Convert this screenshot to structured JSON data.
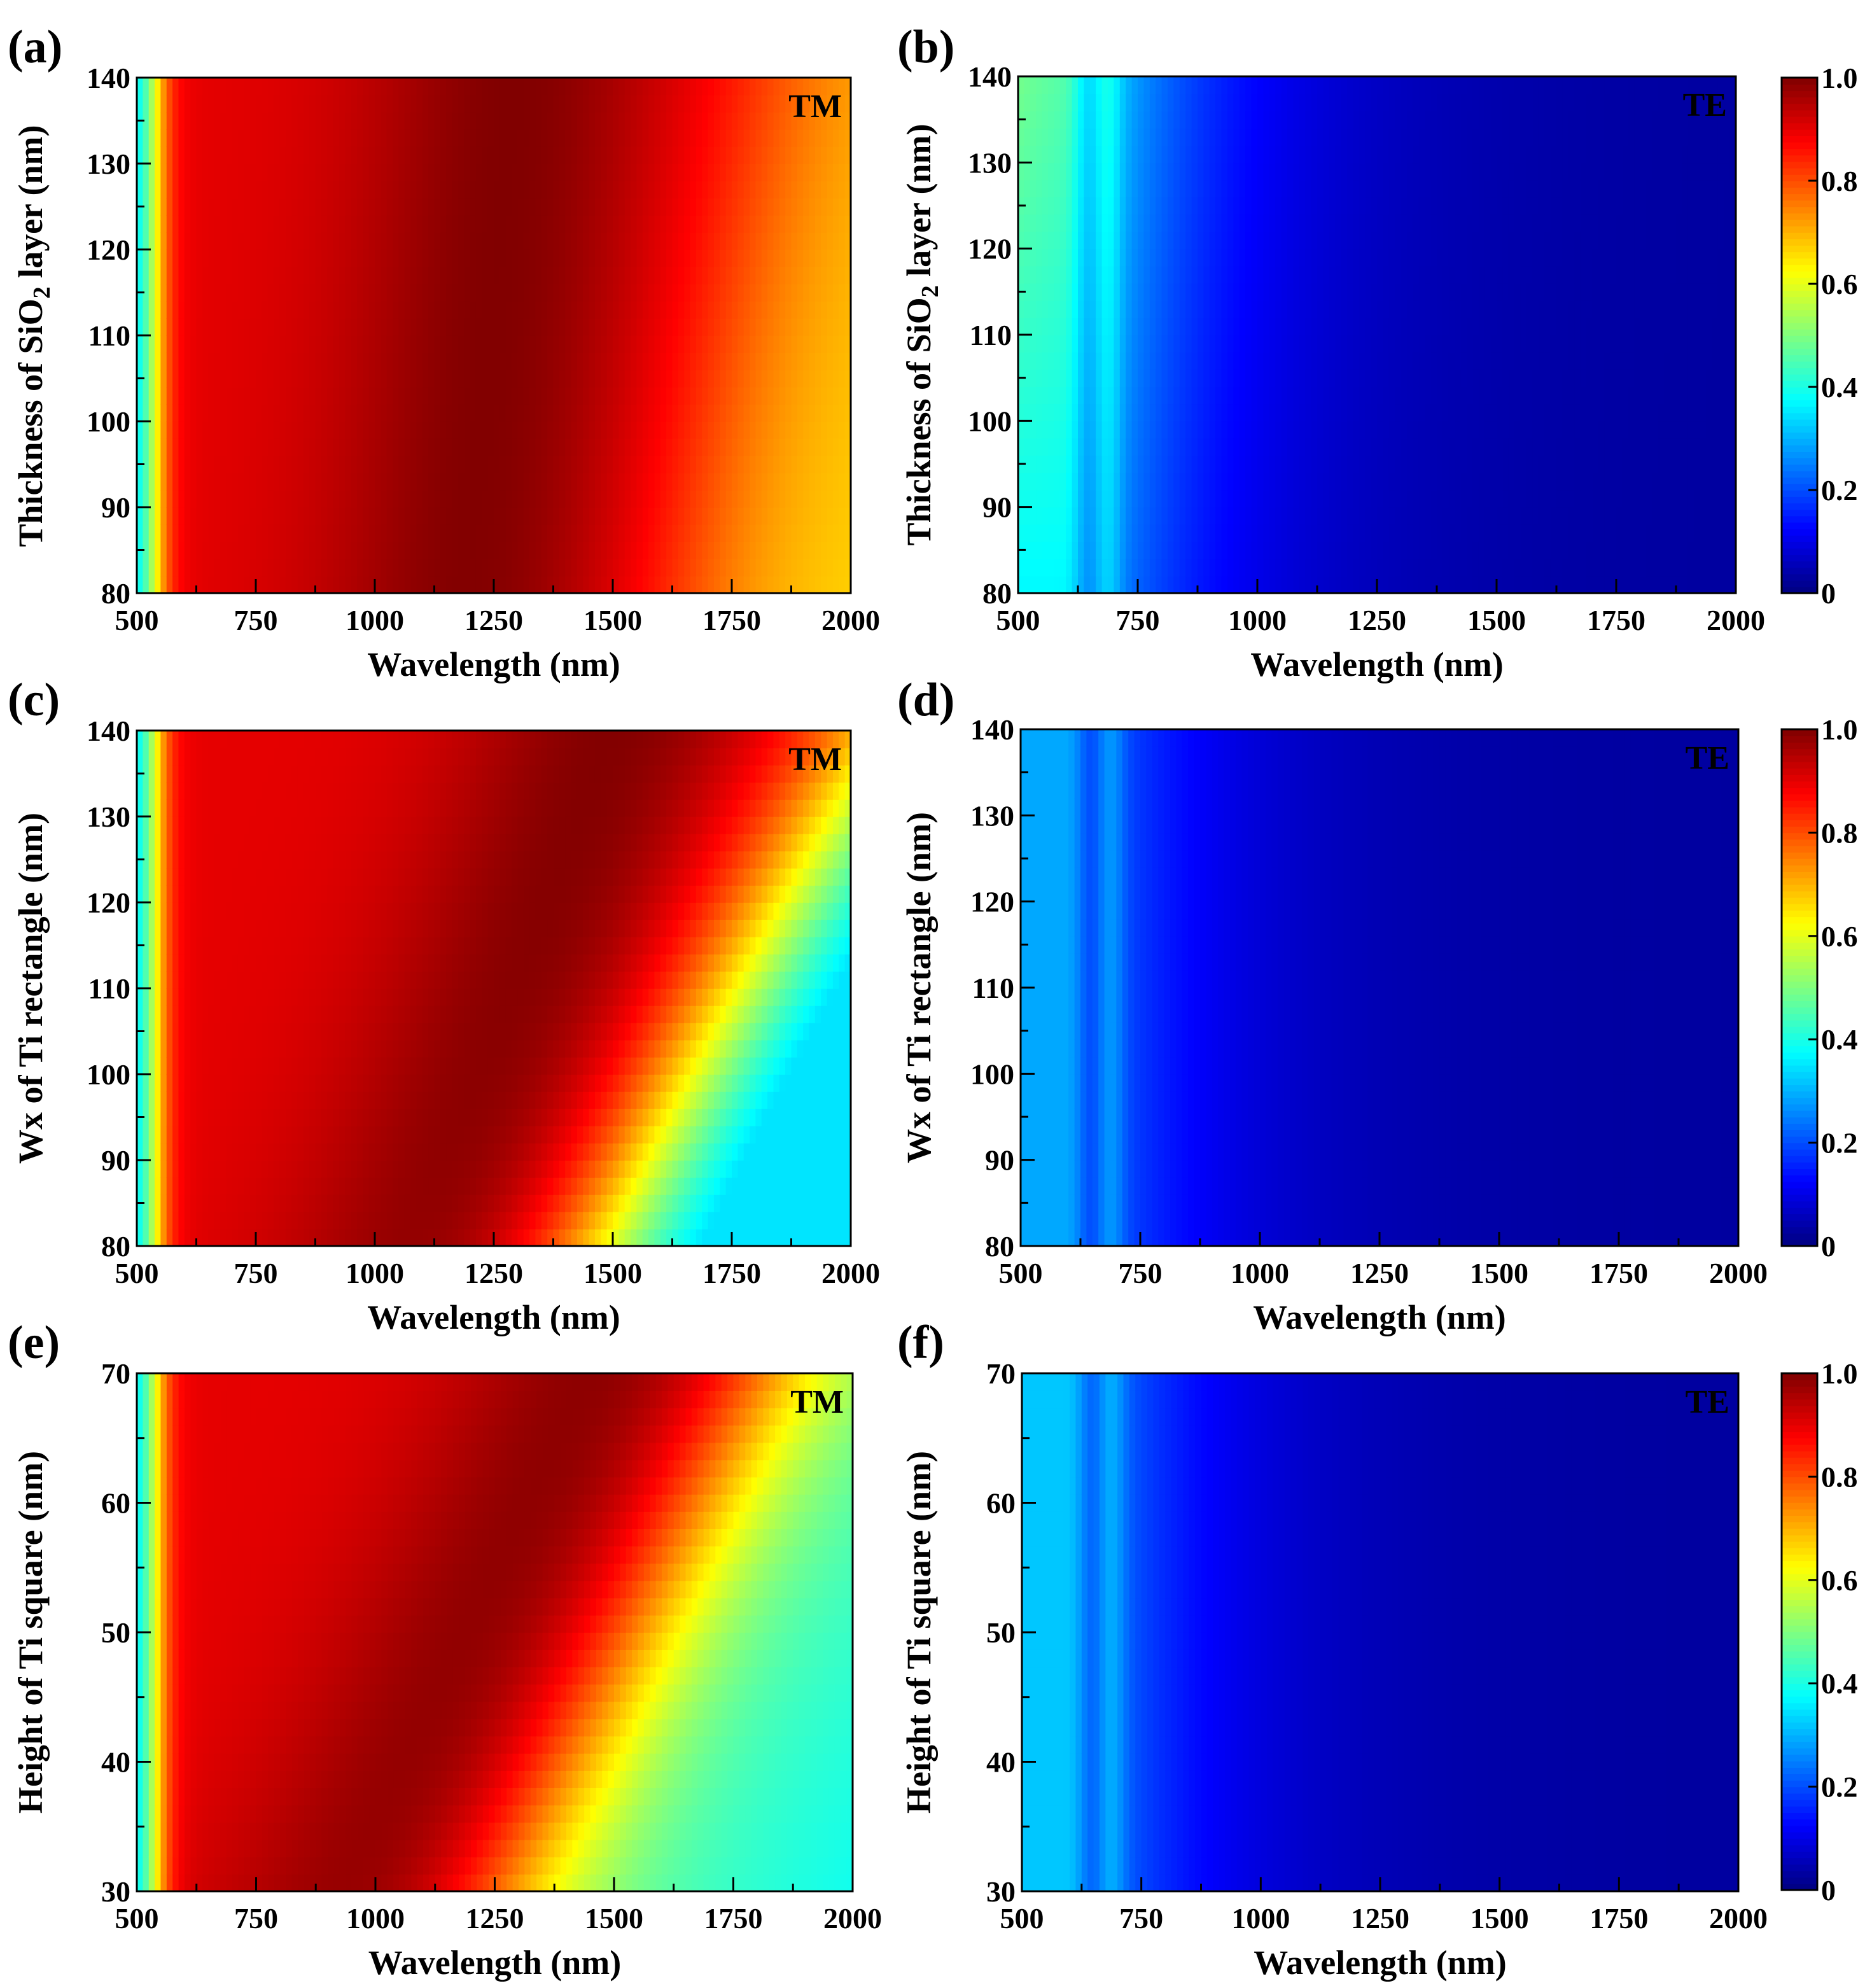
{
  "figure": {
    "description_free": true
  },
  "chart_data": [
    {
      "type": "heatmap",
      "panel": "(a)",
      "mode": "TM",
      "title": "",
      "xlabel": "Wavelength (nm)",
      "ylabel_main": "Thickness of SiO",
      "ylabel_sub": "2",
      "ylabel_tail": " layer (nm)",
      "xlim": [
        500,
        2000
      ],
      "ylim": [
        80,
        140
      ],
      "xticks": [
        500,
        750,
        1000,
        1250,
        1500,
        1750,
        2000
      ],
      "yticks": [
        80,
        90,
        100,
        110,
        120,
        130,
        140
      ],
      "xticklabels": [
        "500",
        "750",
        "1000",
        "1250",
        "1500",
        "1750",
        "2000"
      ],
      "yticklabels": [
        "80",
        "90",
        "100",
        "110",
        "120",
        "130",
        "140"
      ],
      "model": "tm",
      "params": {
        "c0": 1300,
        "cs": 1.5,
        "d0": 1850,
        "ds": 3.0,
        "yref": 140,
        "lowedge": 80,
        "dep": 0.22
      },
      "colorbar": null
    },
    {
      "type": "heatmap",
      "panel": "(b)",
      "mode": "TE",
      "title": "",
      "xlabel": "Wavelength (nm)",
      "ylabel_main": "Thickness of SiO",
      "ylabel_sub": "2",
      "ylabel_tail": " layer (nm)",
      "xlim": [
        500,
        2000
      ],
      "ylim": [
        80,
        140
      ],
      "xticks": [
        500,
        750,
        1000,
        1250,
        1500,
        1750,
        2000
      ],
      "yticks": [
        80,
        90,
        100,
        110,
        120,
        130,
        140
      ],
      "xticklabels": [
        "500",
        "750",
        "1000",
        "1250",
        "1500",
        "1750",
        "2000"
      ],
      "yticklabels": [
        "80",
        "90",
        "100",
        "110",
        "120",
        "130",
        "140"
      ],
      "model": "te",
      "params": {
        "base": 0.34,
        "yvar": 0.12,
        "yref": 140,
        "span": 60
      },
      "colorbar": {
        "min": 0,
        "max": 1.0,
        "ticks": [
          0,
          0.2,
          0.4,
          0.6,
          0.8,
          1.0
        ],
        "ticklabels": [
          "0",
          "0.2",
          "0.4",
          "0.6",
          "0.8",
          "1.0"
        ]
      }
    },
    {
      "type": "heatmap",
      "panel": "(c)",
      "mode": "TM",
      "title": "",
      "xlabel": "Wavelength (nm)",
      "ylabel_main": "Wx of Ti rectangle (nm)",
      "ylabel_sub": "",
      "ylabel_tail": "",
      "xlim": [
        500,
        2000
      ],
      "ylim": [
        80,
        140
      ],
      "xticks": [
        500,
        750,
        1000,
        1250,
        1500,
        1750,
        2000
      ],
      "yticks": [
        80,
        90,
        100,
        110,
        120,
        130,
        140
      ],
      "xticklabels": [
        "500",
        "750",
        "1000",
        "1250",
        "1500",
        "1750",
        "2000"
      ],
      "yticklabels": [
        "80",
        "90",
        "100",
        "110",
        "120",
        "130",
        "140"
      ],
      "model": "tm",
      "params": {
        "c0": 1150,
        "cs": 6.0,
        "d0": 1480,
        "ds": 10.0,
        "yref": 80,
        "lowedge": 80,
        "dep": 0.62
      },
      "colorbar": null
    },
    {
      "type": "heatmap",
      "panel": "(d)",
      "mode": "TE",
      "title": "",
      "xlabel": "Wavelength (nm)",
      "ylabel_main": "Wx of Ti rectangle (nm)",
      "ylabel_sub": "",
      "ylabel_tail": "",
      "xlim": [
        500,
        2000
      ],
      "ylim": [
        80,
        140
      ],
      "xticks": [
        500,
        750,
        1000,
        1250,
        1500,
        1750,
        2000
      ],
      "yticks": [
        80,
        90,
        100,
        110,
        120,
        130,
        140
      ],
      "xticklabels": [
        "500",
        "750",
        "1000",
        "1250",
        "1500",
        "1750",
        "2000"
      ],
      "yticklabels": [
        "80",
        "90",
        "100",
        "110",
        "120",
        "130",
        "140"
      ],
      "model": "te",
      "params": {
        "base": 0.26,
        "yvar": 0.0,
        "yref": 140,
        "span": 60
      },
      "colorbar": {
        "min": 0,
        "max": 1.0,
        "ticks": [
          0,
          0.2,
          0.4,
          0.6,
          0.8,
          1.0
        ],
        "ticklabels": [
          "0",
          "0.2",
          "0.4",
          "0.6",
          "0.8",
          "1.0"
        ]
      }
    },
    {
      "type": "heatmap",
      "panel": "(e)",
      "mode": "TM",
      "title": "",
      "xlabel": "Wavelength (nm)",
      "ylabel_main": "Height of Ti square (nm)",
      "ylabel_sub": "",
      "ylabel_tail": "",
      "xlim": [
        500,
        2000
      ],
      "ylim": [
        30,
        70
      ],
      "xticks": [
        500,
        750,
        1000,
        1250,
        1500,
        1750,
        2000
      ],
      "yticks": [
        30,
        40,
        50,
        60,
        70
      ],
      "xticklabels": [
        "500",
        "750",
        "1000",
        "1250",
        "1500",
        "1750",
        "2000"
      ],
      "yticklabels": [
        "30",
        "40",
        "50",
        "60",
        "70"
      ],
      "model": "tm",
      "params": {
        "c0": 1500,
        "cs": 12.0,
        "d0": 1850,
        "ds": 14.0,
        "yref": 70,
        "lowedge": 30,
        "dep": 0.45
      },
      "colorbar": null
    },
    {
      "type": "heatmap",
      "panel": "(f)",
      "mode": "TE",
      "title": "",
      "xlabel": "Wavelength (nm)",
      "ylabel_main": "Height of Ti square (nm)",
      "ylabel_sub": "",
      "ylabel_tail": "",
      "xlim": [
        500,
        2000
      ],
      "ylim": [
        30,
        70
      ],
      "xticks": [
        500,
        750,
        1000,
        1250,
        1500,
        1750,
        2000
      ],
      "yticks": [
        30,
        40,
        50,
        60,
        70
      ],
      "xticklabels": [
        "500",
        "750",
        "1000",
        "1250",
        "1500",
        "1750",
        "2000"
      ],
      "yticklabels": [
        "30",
        "40",
        "50",
        "60",
        "70"
      ],
      "model": "te",
      "params": {
        "base": 0.29,
        "yvar": 0.0,
        "yref": 70,
        "span": 40
      },
      "colorbar": {
        "min": 0,
        "max": 1.0,
        "ticks": [
          0,
          0.2,
          0.4,
          0.6,
          0.8,
          1.0
        ],
        "ticklabels": [
          "0",
          "0.2",
          "0.4",
          "0.6",
          "0.8",
          "1.0"
        ]
      }
    }
  ]
}
